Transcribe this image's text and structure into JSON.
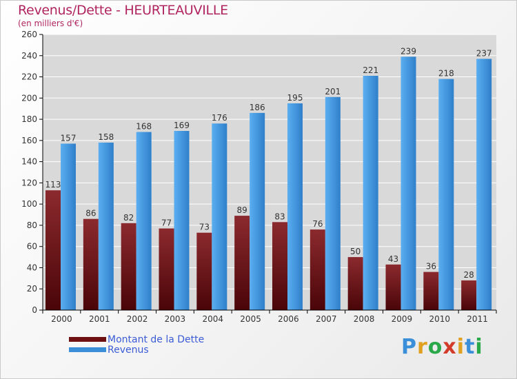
{
  "header": {
    "title": "Revenus/Dette - HEURTEAUVILLE",
    "subtitle": "(en milliers d'€)"
  },
  "colors": {
    "dette": "#6e0f12",
    "dette_light": "#a23a3d",
    "revenus": "#3a8fd8",
    "revenus_light": "#5aaef0",
    "axis": "#000000",
    "grid": "#ffffff",
    "plot_bg": "#d9d9d9",
    "title": "#b0245f",
    "legend_text": "#3b5bd6"
  },
  "chart_data": {
    "type": "bar",
    "title": "Revenus/Dette - HEURTEAUVILLE",
    "subtitle": "(en milliers d'€)",
    "categories": [
      "2000",
      "2001",
      "2002",
      "2003",
      "2004",
      "2005",
      "2006",
      "2007",
      "2008",
      "2009",
      "2010",
      "2011"
    ],
    "series": [
      {
        "name": "Montant de la Dette",
        "values": [
          113,
          86,
          82,
          77,
          73,
          89,
          83,
          76,
          50,
          43,
          36,
          28
        ]
      },
      {
        "name": "Revenus",
        "values": [
          157,
          158,
          168,
          169,
          176,
          186,
          195,
          201,
          221,
          239,
          218,
          237
        ]
      }
    ],
    "ylim": [
      0,
      260
    ],
    "yticks": [
      0,
      20,
      40,
      60,
      80,
      100,
      120,
      140,
      160,
      180,
      200,
      220,
      240,
      260
    ],
    "grid": true,
    "legend_position": "bottom-left"
  },
  "legend": {
    "items": [
      {
        "label": "Montant de la Dette"
      },
      {
        "label": "Revenus"
      }
    ]
  },
  "logo": {
    "text": "Proxiti",
    "letters": [
      "P",
      "r",
      "o",
      "x",
      "i",
      "t",
      "i"
    ],
    "letter_colors": [
      "#3a8fd8",
      "#e0a020",
      "#2aa84a",
      "#d23a2a",
      "#e0a020",
      "#3a8fd8",
      "#2aa84a"
    ]
  }
}
